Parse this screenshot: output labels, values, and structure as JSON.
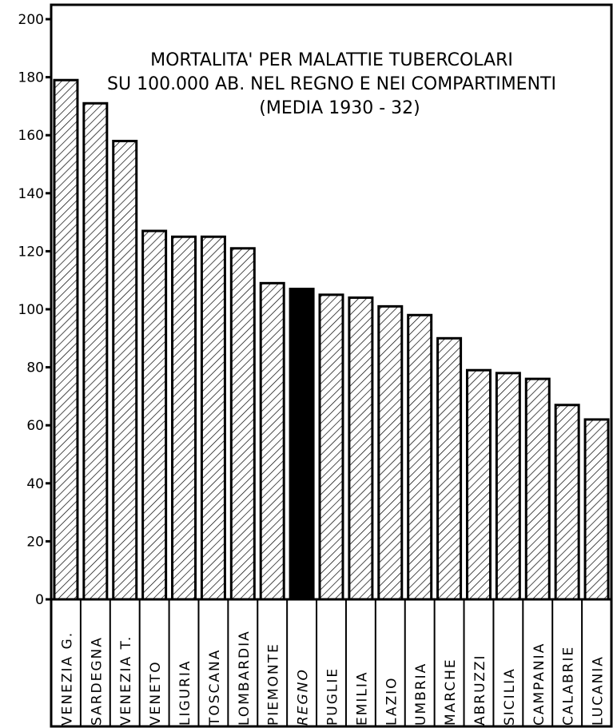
{
  "chart_data": {
    "type": "bar",
    "title_lines": [
      "MORTALITA' PER MALATTIE TUBERCOLARI",
      "SU 100.000 AB. NEL REGNO E NEI COMPARTIMENTI",
      "(MEDIA 1930 - 32)"
    ],
    "xlabel": "",
    "ylabel": "",
    "ylim": [
      0,
      200
    ],
    "yticks": [
      0,
      20,
      40,
      60,
      80,
      100,
      120,
      140,
      160,
      180,
      200
    ],
    "categories": [
      "VENEZIA G.",
      "SARDEGNA",
      "VENEZIA T.",
      "VENETO",
      "LIGURIA",
      "TOSCANA",
      "LOMBARDIA",
      "PIEMONTE",
      "REGNO",
      "PUGLIE",
      "EMILIA",
      "LAZIO",
      "UMBRIA",
      "MARCHE",
      "ABRUZZI",
      "SICILIA",
      "CAMPANIA",
      "CALABRIE",
      "LUCANIA"
    ],
    "values": [
      179,
      171,
      158,
      127,
      125,
      125,
      121,
      109,
      107,
      105,
      104,
      101,
      98,
      90,
      79,
      78,
      76,
      67,
      62
    ],
    "highlight_category": "REGNO",
    "colors": {
      "bar_fill": "hatched",
      "highlight_fill": "#000000",
      "outline": "#000000"
    }
  }
}
